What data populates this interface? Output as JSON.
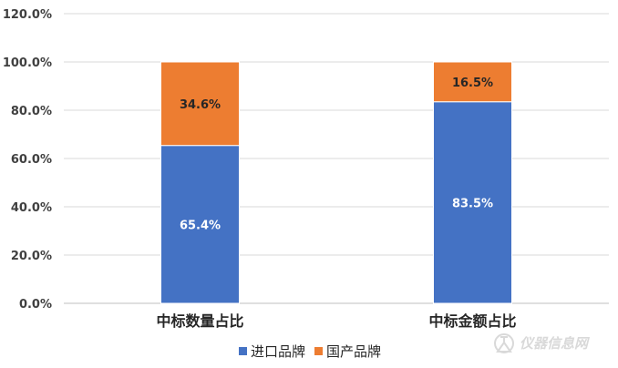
{
  "chart_data": {
    "type": "bar",
    "stacked": true,
    "categories": [
      "中标数量占比",
      "中标金额占比"
    ],
    "series": [
      {
        "name": "进口品牌",
        "values": [
          65.4,
          83.5
        ],
        "labels": [
          "65.4%",
          "83.5%"
        ],
        "color": "#4472c4",
        "label_color": "#ffffff"
      },
      {
        "name": "国产品牌",
        "values": [
          34.6,
          16.5
        ],
        "labels": [
          "34.6%",
          "16.5%"
        ],
        "color": "#ed7d31",
        "label_color": "#262626"
      }
    ],
    "ylim": [
      0,
      120
    ],
    "yticks": [
      0,
      20,
      40,
      60,
      80,
      100,
      120
    ],
    "ytick_labels": [
      "0.0%",
      "20.0%",
      "40.0%",
      "60.0%",
      "80.0%",
      "100.0%",
      "120.0%"
    ],
    "grid": true,
    "legend": "bottom-center",
    "title": "",
    "xlabel": "",
    "ylabel": ""
  },
  "watermark": {
    "text": "仪器信息网",
    "icon": "flask-logo-icon"
  }
}
